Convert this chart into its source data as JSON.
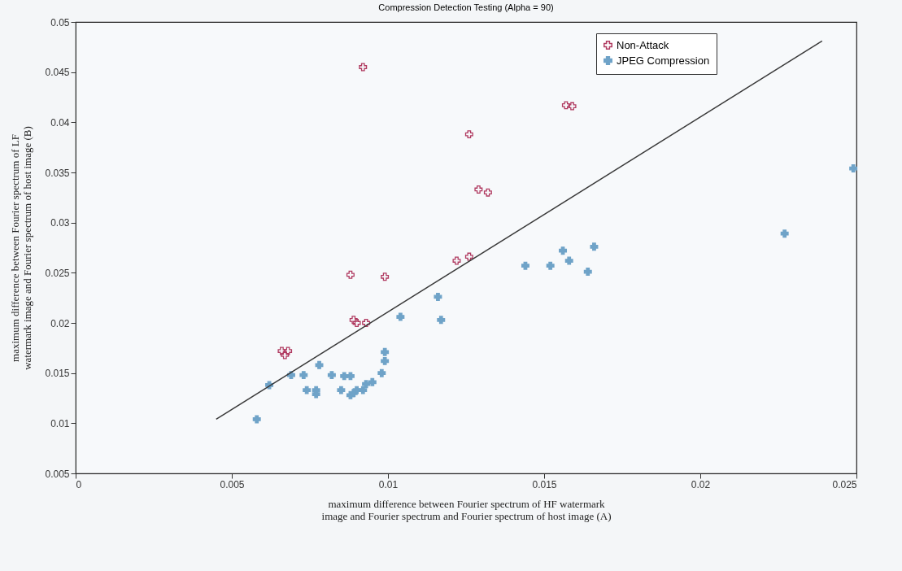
{
  "chart_data": {
    "type": "scatter",
    "title": "Compression Detection Testing (Alpha = 90)",
    "xlabel": "maximum difference between Fourier spectrum of HF watermark image and Fourier spectrum and Fourier spectrum of host image (A)",
    "ylabel": "maximum difference between Fourier spectrum of LF watermark image and Fourier spectrum of host image (B)",
    "xlim": [
      0,
      0.025
    ],
    "xticks": [
      0,
      0.005,
      0.01,
      0.015,
      0.02,
      0.025
    ],
    "ylim": [
      0.005,
      0.05
    ],
    "yticks": [
      0.005,
      0.01,
      0.015,
      0.02,
      0.025,
      0.03,
      0.035,
      0.04,
      0.045,
      0.05
    ],
    "grid": false,
    "legend": "top right",
    "marker": "cross",
    "series": [
      {
        "name": "Non-Attack",
        "color": "#b03a60",
        "x": [
          0.0066,
          0.0068,
          0.0067,
          0.0088,
          0.0092,
          0.0089,
          0.009,
          0.0093,
          0.0099,
          0.0122,
          0.0126,
          0.0126,
          0.0129,
          0.0132,
          0.0157,
          0.0159
        ],
        "values": [
          0.0172,
          0.0172,
          0.0168,
          0.0248,
          0.0455,
          0.0203,
          0.02,
          0.02,
          0.0246,
          0.0262,
          0.0266,
          0.0388,
          0.0333,
          0.033,
          0.0417,
          0.0416
        ]
      },
      {
        "name": "JPEG Compression",
        "color": "#6fa3c8",
        "x": [
          0.0058,
          0.0062,
          0.0069,
          0.0073,
          0.0074,
          0.0077,
          0.0077,
          0.0078,
          0.0082,
          0.0085,
          0.0086,
          0.0088,
          0.0088,
          0.0089,
          0.009,
          0.0092,
          0.0093,
          0.0095,
          0.0098,
          0.0099,
          0.0099,
          0.0104,
          0.0116,
          0.0117,
          0.0144,
          0.0152,
          0.0156,
          0.0158,
          0.0164,
          0.0166,
          0.0227,
          0.0249
        ],
        "values": [
          0.0104,
          0.0138,
          0.0148,
          0.0148,
          0.0133,
          0.0129,
          0.0133,
          0.0158,
          0.0148,
          0.0133,
          0.0147,
          0.0147,
          0.0128,
          0.013,
          0.0133,
          0.0133,
          0.0139,
          0.0141,
          0.015,
          0.0162,
          0.0171,
          0.0206,
          0.0226,
          0.0203,
          0.0257,
          0.0257,
          0.0272,
          0.0262,
          0.0251,
          0.0276,
          0.0289,
          0.0354
        ]
      },
      {
        "type": "line",
        "marker": "none",
        "color": "#3a3a3a",
        "x": [
          0.0045,
          0.0239
        ],
        "values": [
          0.0104,
          0.0481
        ]
      }
    ]
  }
}
